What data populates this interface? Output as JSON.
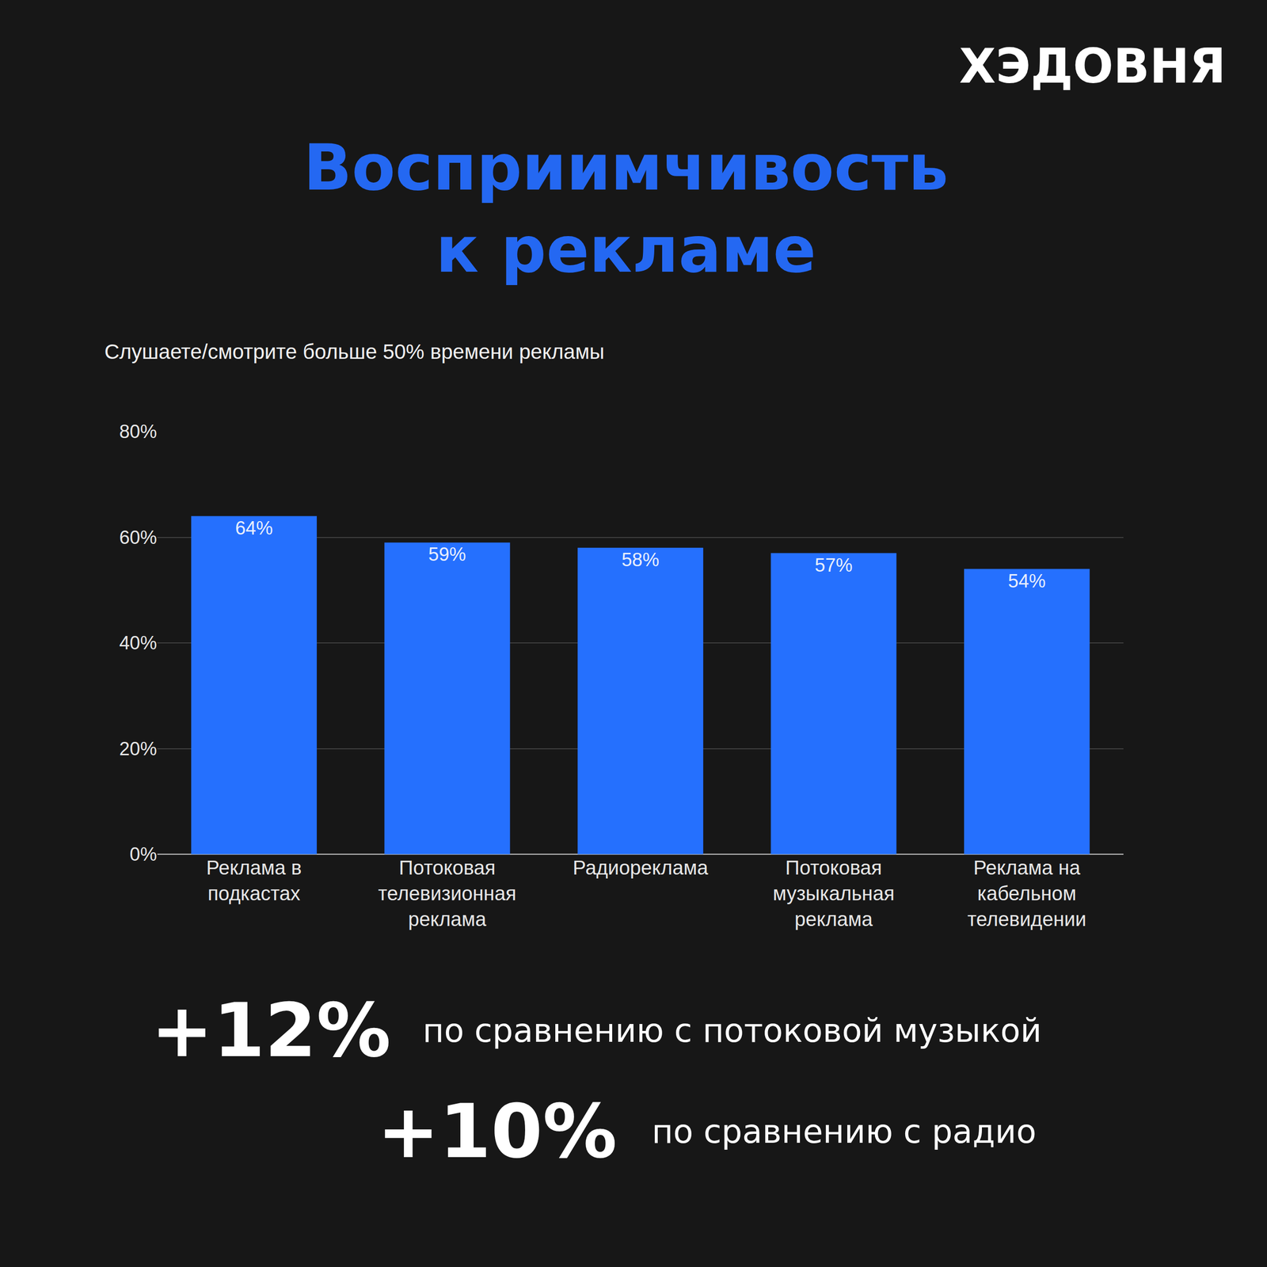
{
  "chart_data": {
    "type": "bar",
    "brand": "ХЭДОВНЯ",
    "title": "Восприимчивость к рекламе",
    "subtitle": "Слушаете/смотрите больше 50% времени рекламы",
    "categories": [
      "Реклама в подкастах",
      "Потоковая телевизионная реклама",
      "Радиореклама",
      "Потоковая музыкальная реклама",
      "Реклама на кабельном телевидении"
    ],
    "values": [
      64,
      59,
      58,
      57,
      54
    ],
    "value_labels": [
      "64%",
      "59%",
      "58%",
      "57%",
      "54%"
    ],
    "color": "#2570fe",
    "ylim": [
      0,
      80
    ],
    "yticks": [
      {
        "value": 0,
        "label": "0%"
      },
      {
        "value": 20,
        "label": "20%"
      },
      {
        "value": 40,
        "label": "40%"
      },
      {
        "value": 60,
        "label": "60%"
      },
      {
        "value": 80,
        "label": "80%"
      }
    ],
    "grid": true,
    "data_labels": true,
    "annotations": [
      {
        "value": "+12%",
        "text": "по сравнению с потоковой музыкой"
      },
      {
        "value": "+10%",
        "text": "по сравнению с радио"
      }
    ]
  }
}
